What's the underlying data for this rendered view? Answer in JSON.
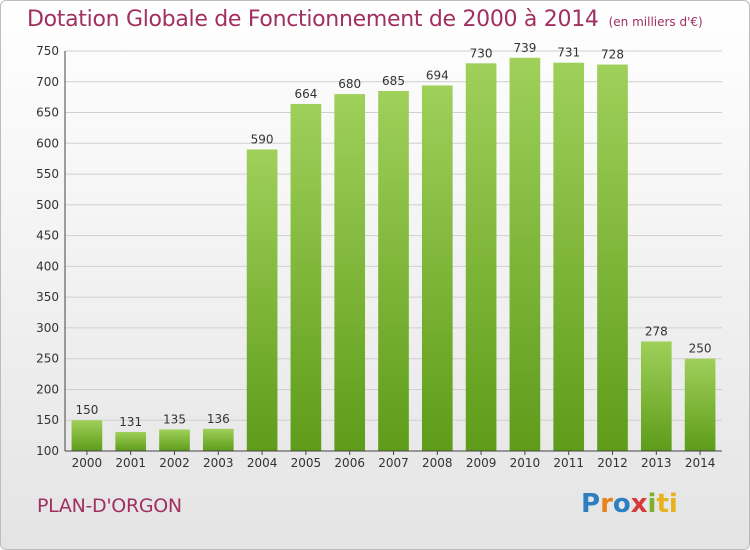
{
  "title": "Dotation Globale de Fonctionnement de 2000 à 2014",
  "unit_label": "(en milliers d'€)",
  "place": "PLAN-D'ORGON",
  "logo": {
    "text": "Proxiti",
    "letters": [
      "P",
      "r",
      "o",
      "x",
      "i",
      "ti"
    ]
  },
  "colors": {
    "bar_light": "#9fd05a",
    "bar_dark": "#5e9c1a",
    "title": "#a03060"
  },
  "chart_data": {
    "type": "bar",
    "categories": [
      "2000",
      "2001",
      "2002",
      "2003",
      "2004",
      "2005",
      "2006",
      "2007",
      "2008",
      "2009",
      "2010",
      "2011",
      "2012",
      "2013",
      "2014"
    ],
    "values": [
      150,
      131,
      135,
      136,
      590,
      664,
      680,
      685,
      694,
      730,
      739,
      731,
      728,
      278,
      250
    ],
    "ylim": [
      100,
      750
    ],
    "yticks": [
      100,
      150,
      200,
      250,
      300,
      350,
      400,
      450,
      500,
      550,
      600,
      650,
      700,
      750
    ],
    "grid": true
  }
}
